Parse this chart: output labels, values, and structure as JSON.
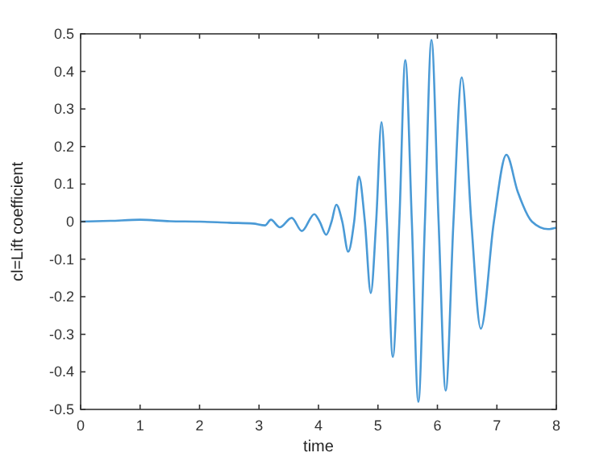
{
  "chart_data": {
    "type": "line",
    "xlabel": "time",
    "ylabel": "cl=Lift coefficient",
    "xlim": [
      0,
      8
    ],
    "ylim": [
      -0.5,
      0.5
    ],
    "xticks": [
      0,
      1,
      2,
      3,
      4,
      5,
      6,
      7,
      8
    ],
    "yticks": [
      -0.5,
      -0.4,
      -0.3,
      -0.2,
      -0.1,
      0,
      0.1,
      0.2,
      0.3,
      0.4,
      0.5
    ],
    "grid": false,
    "series": [
      {
        "color": "#4a9ad6",
        "x": [
          0,
          0.5,
          1,
          1.5,
          2,
          2.5,
          2.9,
          3.1,
          3.2,
          3.35,
          3.55,
          3.72,
          3.93,
          4.02,
          4.13,
          4.22,
          4.3,
          4.4,
          4.5,
          4.6,
          4.68,
          4.78,
          4.88,
          4.97,
          5.06,
          5.15,
          5.25,
          5.36,
          5.46,
          5.57,
          5.68,
          5.79,
          5.9,
          6.02,
          6.14,
          6.27,
          6.41,
          6.57,
          6.73,
          6.95,
          7.16,
          7.35,
          7.59,
          7.86,
          8
        ],
        "values": [
          0,
          0.002,
          0.005,
          0.001,
          0,
          -0.003,
          -0.005,
          -0.01,
          0.005,
          -0.015,
          0.01,
          -0.025,
          0.02,
          0,
          -0.035,
          0,
          0.045,
          0,
          -0.08,
          0,
          0.12,
          0,
          -0.19,
          0,
          0.265,
          0,
          -0.36,
          0,
          0.43,
          0,
          -0.48,
          0,
          0.484,
          0,
          -0.45,
          0,
          0.384,
          0,
          -0.285,
          0,
          0.178,
          0.08,
          0,
          -0.02,
          -0.016
        ]
      }
    ]
  }
}
